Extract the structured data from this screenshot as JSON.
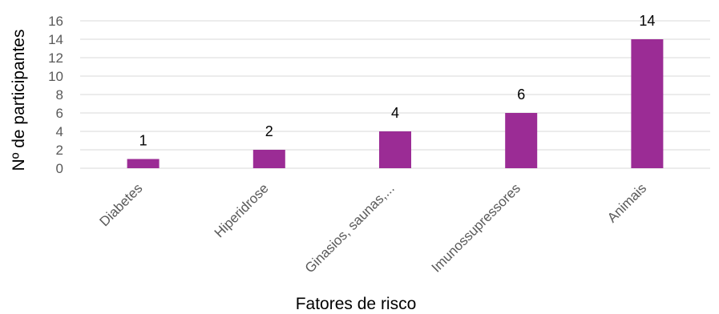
{
  "chart_data": {
    "type": "bar",
    "categories": [
      "Diabetes",
      "Hiperidrose",
      "Ginasios, saunas,...",
      "Imunossupressores",
      "Animais"
    ],
    "values": [
      1,
      2,
      4,
      6,
      14
    ],
    "data_labels": [
      "1",
      "2",
      "4",
      "6",
      "14"
    ],
    "xlabel": "Fatores de risco",
    "ylabel": "Nº de participantes",
    "ylim": [
      0,
      16
    ],
    "yticks": [
      "0",
      "2",
      "4",
      "6",
      "8",
      "10",
      "12",
      "14",
      "16"
    ],
    "grid": true,
    "legend": "none",
    "colors": {
      "bar": "#9b2c95",
      "grid": "#d9d9d9",
      "tick_text": "#595959"
    }
  }
}
